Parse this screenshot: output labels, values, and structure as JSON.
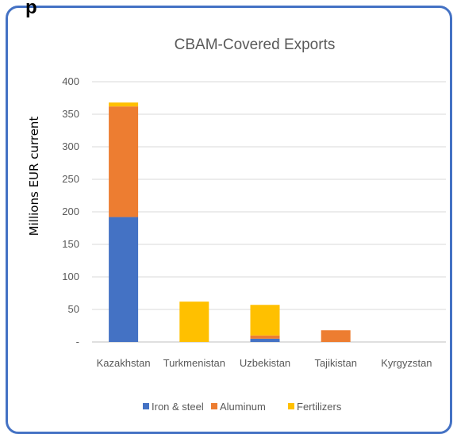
{
  "header_fragment": "p",
  "chart_data": {
    "type": "bar",
    "stacked": true,
    "title": "CBAM-Covered Exports",
    "xlabel": "",
    "ylabel": "Millions EUR current",
    "ylim": [
      0,
      400
    ],
    "yticks": [
      0,
      50,
      100,
      150,
      200,
      250,
      300,
      350,
      400
    ],
    "ytick_labels": [
      "-",
      "50",
      "100",
      "150",
      "200",
      "250",
      "300",
      "350",
      "400"
    ],
    "categories": [
      "Kazakhstan",
      "Turkmenistan",
      "Uzbekistan",
      "Tajikistan",
      "Kyrgyzstan"
    ],
    "series": [
      {
        "name": "Iron & steel",
        "color": "#4472C4",
        "values": [
          192,
          0,
          5,
          0,
          0
        ]
      },
      {
        "name": "Aluminum",
        "color": "#ED7D31",
        "values": [
          170,
          0,
          5,
          18,
          0
        ]
      },
      {
        "name": "Fertilizers",
        "color": "#FFC000",
        "values": [
          6,
          62,
          47,
          0,
          0
        ]
      }
    ],
    "grid": true,
    "legend_position": "bottom"
  }
}
